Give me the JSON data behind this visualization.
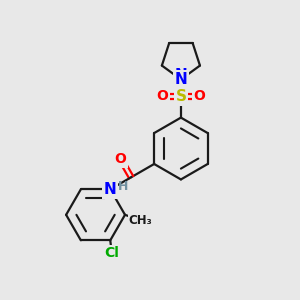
{
  "background_color": "#e8e8e8",
  "bond_color": "#1a1a1a",
  "atom_colors": {
    "N": "#0000ff",
    "O": "#ff0000",
    "S": "#bbbb00",
    "Cl": "#00aa00",
    "H": "#7090a0",
    "C": "#1a1a1a"
  },
  "figsize": [
    3.0,
    3.0
  ],
  "dpi": 100,
  "lw": 1.6
}
